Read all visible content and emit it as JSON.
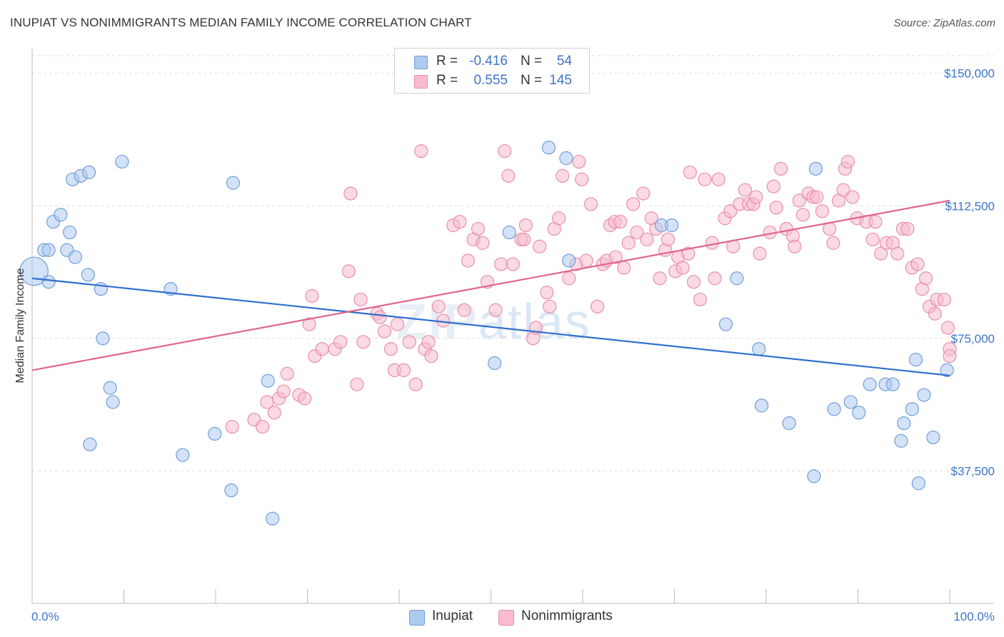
{
  "title": "INUPIAT VS NONIMMIGRANTS MEDIAN FAMILY INCOME CORRELATION CHART",
  "source": "Source: ZipAtlas.com",
  "watermark": {
    "zip": "ZIP",
    "atlas": "atlas"
  },
  "legend": {
    "inupiat": {
      "r_label": "R =",
      "r_value": "-0.416",
      "n_label": "N =",
      "n_value": "54"
    },
    "nonimmigrants": {
      "r_label": "R =",
      "r_value": "0.555",
      "n_label": "N =",
      "n_value": "145"
    }
  },
  "bottom_legend": {
    "inupiat": "Inupiat",
    "nonimmigrants": "Nonimmigrants"
  },
  "colors": {
    "inupiat_fill": "#aecbf0",
    "inupiat_stroke": "#6f9fd8",
    "inupiat_line": "#2f6fce",
    "nonimm_fill": "#f7bccd",
    "nonimm_stroke": "#e88fab",
    "nonimm_line": "#e0658f",
    "tick_text": "#3d75c9",
    "grid": "#dddddd"
  },
  "chart_data": {
    "type": "scatter",
    "title": "INUPIAT VS NONIMMIGRANTS MEDIAN FAMILY INCOME CORRELATION CHART",
    "xlabel": "",
    "ylabel": "Median Family Income",
    "xlim": [
      0,
      100
    ],
    "ylim": [
      0,
      155000
    ],
    "x_tick_labels": [
      "0.0%",
      "100.0%"
    ],
    "y_ticks": [
      37500,
      75000,
      112500,
      150000
    ],
    "y_tick_labels": [
      "$37,500",
      "$75,000",
      "$112,500",
      "$150,000"
    ],
    "grid": true,
    "legend_position": "top-center",
    "series": [
      {
        "name": "Inupiat",
        "trend": {
          "x": [
            0,
            100
          ],
          "y": [
            92000,
            64500
          ]
        },
        "points": [
          [
            0.2,
            94000,
            2.2
          ],
          [
            1.3,
            100000,
            1
          ],
          [
            1.8,
            91000,
            1
          ],
          [
            1.8,
            100000,
            1
          ],
          [
            2.3,
            108000,
            1
          ],
          [
            3.1,
            110000,
            1
          ],
          [
            3.8,
            100000,
            1
          ],
          [
            4.1,
            105000,
            1
          ],
          [
            4.4,
            120000,
            1
          ],
          [
            4.7,
            98000,
            1
          ],
          [
            5.3,
            121000,
            1
          ],
          [
            6.2,
            122000,
            1
          ],
          [
            6.1,
            93000,
            1
          ],
          [
            7.5,
            89000,
            1
          ],
          [
            7.7,
            75000,
            1
          ],
          [
            8.5,
            61000,
            1
          ],
          [
            8.8,
            57000,
            1
          ],
          [
            9.8,
            125000,
            1
          ],
          [
            6.3,
            45000,
            1
          ],
          [
            15.1,
            89000,
            1
          ],
          [
            16.4,
            42000,
            1
          ],
          [
            19.9,
            48000,
            1
          ],
          [
            21.9,
            119000,
            1
          ],
          [
            21.7,
            32000,
            1
          ],
          [
            25.7,
            63000,
            1
          ],
          [
            26.2,
            24000,
            1
          ],
          [
            50.4,
            68000,
            1
          ],
          [
            52.0,
            105000,
            1
          ],
          [
            56.3,
            129000,
            1
          ],
          [
            58.2,
            126000,
            1
          ],
          [
            58.5,
            97000,
            1
          ],
          [
            68.6,
            107000,
            1
          ],
          [
            69.7,
            107000,
            1
          ],
          [
            75.6,
            79000,
            1
          ],
          [
            76.8,
            92000,
            1
          ],
          [
            79.2,
            72000,
            1
          ],
          [
            79.5,
            56000,
            1
          ],
          [
            82.5,
            51000,
            1
          ],
          [
            85.4,
            123000,
            1
          ],
          [
            85.2,
            36000,
            1
          ],
          [
            87.4,
            55000,
            1
          ],
          [
            89.2,
            57000,
            1
          ],
          [
            90.1,
            54000,
            1
          ],
          [
            91.3,
            62000,
            1
          ],
          [
            93.0,
            62000,
            1
          ],
          [
            93.8,
            62000,
            1
          ],
          [
            94.7,
            46000,
            1
          ],
          [
            95.0,
            51000,
            1
          ],
          [
            95.9,
            55000,
            1
          ],
          [
            96.3,
            69000,
            1
          ],
          [
            96.6,
            34000,
            1
          ],
          [
            97.2,
            59000,
            1
          ],
          [
            98.2,
            47000,
            1
          ],
          [
            99.7,
            66000,
            1
          ]
        ]
      },
      {
        "name": "Nonimmigrants",
        "trend": {
          "x": [
            0,
            100
          ],
          "y": [
            66000,
            114000
          ]
        },
        "points": [
          [
            21.8,
            50000,
            1
          ],
          [
            24.2,
            52000,
            1
          ],
          [
            25.1,
            50000,
            1
          ],
          [
            25.6,
            57000,
            1
          ],
          [
            26.4,
            54000,
            1
          ],
          [
            26.9,
            58000,
            1
          ],
          [
            27.4,
            60000,
            1
          ],
          [
            27.8,
            65000,
            1
          ],
          [
            29.1,
            59000,
            1
          ],
          [
            29.7,
            58000,
            1
          ],
          [
            30.2,
            79000,
            1
          ],
          [
            30.5,
            87000,
            1
          ],
          [
            30.8,
            70000,
            1
          ],
          [
            31.6,
            72000,
            1
          ],
          [
            33.0,
            72000,
            1
          ],
          [
            33.6,
            74000,
            1
          ],
          [
            34.5,
            94000,
            1
          ],
          [
            34.7,
            116000,
            1
          ],
          [
            35.4,
            62000,
            1
          ],
          [
            35.8,
            86000,
            1
          ],
          [
            36.1,
            74000,
            1
          ],
          [
            37.6,
            82000,
            1
          ],
          [
            37.9,
            81000,
            1
          ],
          [
            38.4,
            77000,
            1
          ],
          [
            39.1,
            72000,
            1
          ],
          [
            39.5,
            66000,
            1
          ],
          [
            39.8,
            79000,
            1
          ],
          [
            40.5,
            66000,
            1
          ],
          [
            41.1,
            74000,
            1
          ],
          [
            41.8,
            62000,
            1
          ],
          [
            42.4,
            128000,
            1
          ],
          [
            42.8,
            72000,
            1
          ],
          [
            43.2,
            74000,
            1
          ],
          [
            43.5,
            70000,
            1
          ],
          [
            44.3,
            84000,
            1
          ],
          [
            44.8,
            80000,
            1
          ],
          [
            45.9,
            107000,
            1
          ],
          [
            46.6,
            108000,
            1
          ],
          [
            47.1,
            83000,
            1
          ],
          [
            47.5,
            97000,
            1
          ],
          [
            48.1,
            103000,
            1
          ],
          [
            48.6,
            106000,
            1
          ],
          [
            49.1,
            102000,
            1
          ],
          [
            49.6,
            91000,
            1
          ],
          [
            50.5,
            83000,
            1
          ],
          [
            51.1,
            96000,
            1
          ],
          [
            51.5,
            128000,
            1
          ],
          [
            51.9,
            121000,
            1
          ],
          [
            52.4,
            96000,
            1
          ],
          [
            53.3,
            103000,
            1
          ],
          [
            53.6,
            103000,
            1
          ],
          [
            53.8,
            107000,
            1
          ],
          [
            54.6,
            75000,
            1
          ],
          [
            54.9,
            78000,
            1
          ],
          [
            55.3,
            101000,
            1
          ],
          [
            56.1,
            88000,
            1
          ],
          [
            56.4,
            84000,
            1
          ],
          [
            56.9,
            106000,
            1
          ],
          [
            57.4,
            109000,
            1
          ],
          [
            57.8,
            121000,
            1
          ],
          [
            58.5,
            92000,
            1
          ],
          [
            59.3,
            96000,
            1
          ],
          [
            59.6,
            125000,
            1
          ],
          [
            59.9,
            120000,
            1
          ],
          [
            60.4,
            97000,
            1
          ],
          [
            60.9,
            113000,
            1
          ],
          [
            61.6,
            84000,
            1
          ],
          [
            62.2,
            96000,
            1
          ],
          [
            62.6,
            97000,
            1
          ],
          [
            63.0,
            107000,
            1
          ],
          [
            63.5,
            108000,
            1
          ],
          [
            63.6,
            98000,
            1
          ],
          [
            64.1,
            108000,
            1
          ],
          [
            64.5,
            95000,
            1
          ],
          [
            65.0,
            102000,
            1
          ],
          [
            65.5,
            113000,
            1
          ],
          [
            65.9,
            105000,
            1
          ],
          [
            66.6,
            116000,
            1
          ],
          [
            67.0,
            103000,
            1
          ],
          [
            67.5,
            109000,
            1
          ],
          [
            68.0,
            106000,
            1
          ],
          [
            68.4,
            92000,
            1
          ],
          [
            69.0,
            100000,
            1
          ],
          [
            69.3,
            103000,
            1
          ],
          [
            70.1,
            94000,
            1
          ],
          [
            70.4,
            98000,
            1
          ],
          [
            70.9,
            95000,
            1
          ],
          [
            71.5,
            99000,
            1
          ],
          [
            71.7,
            122000,
            1
          ],
          [
            72.1,
            91000,
            1
          ],
          [
            72.8,
            86000,
            1
          ],
          [
            73.3,
            120000,
            1
          ],
          [
            74.1,
            102000,
            1
          ],
          [
            74.4,
            92000,
            1
          ],
          [
            74.8,
            120000,
            1
          ],
          [
            75.5,
            109000,
            1
          ],
          [
            76.1,
            111000,
            1
          ],
          [
            76.4,
            101000,
            1
          ],
          [
            77.1,
            113000,
            1
          ],
          [
            77.7,
            117000,
            1
          ],
          [
            78.1,
            113000,
            1
          ],
          [
            78.6,
            113000,
            1
          ],
          [
            78.9,
            115000,
            1
          ],
          [
            79.3,
            99000,
            1
          ],
          [
            80.4,
            105000,
            1
          ],
          [
            80.8,
            118000,
            1
          ],
          [
            81.1,
            112000,
            1
          ],
          [
            81.6,
            123000,
            1
          ],
          [
            82.2,
            106000,
            1
          ],
          [
            82.9,
            104000,
            1
          ],
          [
            83.1,
            101000,
            1
          ],
          [
            83.6,
            114000,
            1
          ],
          [
            84.0,
            110000,
            1
          ],
          [
            84.6,
            116000,
            1
          ],
          [
            85.1,
            115000,
            1
          ],
          [
            85.5,
            115000,
            1
          ],
          [
            86.1,
            111000,
            1
          ],
          [
            86.9,
            106000,
            1
          ],
          [
            87.3,
            102000,
            1
          ],
          [
            87.9,
            114000,
            1
          ],
          [
            88.4,
            117000,
            1
          ],
          [
            88.6,
            123000,
            1
          ],
          [
            88.9,
            125000,
            1
          ],
          [
            89.4,
            115000,
            1
          ],
          [
            89.9,
            109000,
            1
          ],
          [
            90.9,
            108000,
            1
          ],
          [
            91.6,
            103000,
            1
          ],
          [
            91.9,
            108000,
            1
          ],
          [
            92.5,
            99000,
            1
          ],
          [
            93.1,
            102000,
            1
          ],
          [
            93.8,
            102000,
            1
          ],
          [
            94.3,
            99000,
            1
          ],
          [
            94.9,
            106000,
            1
          ],
          [
            95.4,
            106000,
            1
          ],
          [
            95.9,
            95000,
            1
          ],
          [
            96.5,
            96000,
            1
          ],
          [
            97.0,
            89000,
            1
          ],
          [
            97.4,
            92000,
            1
          ],
          [
            97.8,
            84000,
            1
          ],
          [
            98.4,
            82000,
            1
          ],
          [
            98.6,
            86000,
            1
          ],
          [
            99.4,
            86000,
            1
          ],
          [
            99.8,
            78000,
            1
          ],
          [
            100.0,
            72000,
            1
          ],
          [
            100.0,
            70000,
            1
          ]
        ]
      }
    ]
  }
}
